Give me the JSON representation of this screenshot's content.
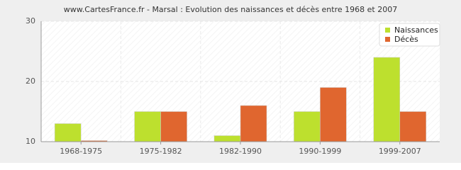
{
  "chart_data": {
    "type": "bar",
    "title": "www.CartesFrance.fr - Marsal : Evolution des naissances et décès entre 1968 et 2007",
    "categories": [
      "1968-1975",
      "1975-1982",
      "1982-1990",
      "1990-1999",
      "1999-2007"
    ],
    "series": [
      {
        "name": "Naissances",
        "color": "#bde02e",
        "values": [
          13,
          15,
          11,
          15,
          24
        ]
      },
      {
        "name": "Décès",
        "color": "#e0662f",
        "values": [
          10,
          15,
          16,
          19,
          15
        ]
      }
    ],
    "ylim": [
      10,
      30
    ],
    "yticks": [
      10,
      20,
      30
    ],
    "grid": true,
    "legend": "top-right"
  }
}
